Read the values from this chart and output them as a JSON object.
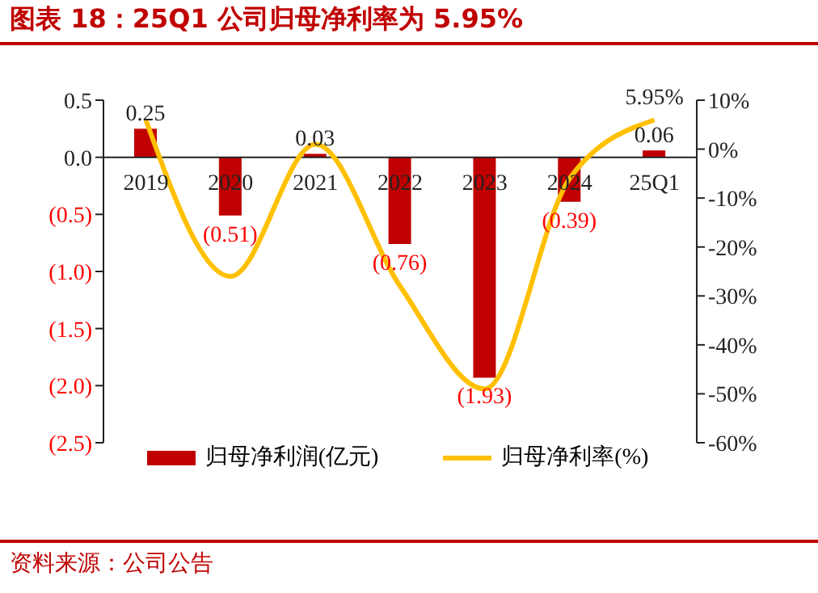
{
  "chart_data": {
    "type": "bar",
    "title": "图表 18：25Q1 公司归母净利率为 5.95%",
    "categories": [
      "2019",
      "2020",
      "2021",
      "2022",
      "2023",
      "2024",
      "25Q1"
    ],
    "series": [
      {
        "name": "归母净利润(亿元)",
        "color": "#c00000",
        "values": [
          0.25,
          -0.51,
          0.03,
          -0.76,
          -1.93,
          -0.39,
          0.06
        ],
        "value_labels": [
          "0.25",
          "(0.51)",
          "0.03",
          "(0.76)",
          "(1.93)",
          "(0.39)",
          "0.06"
        ]
      },
      {
        "name": "归母净利率(%)",
        "type": "line",
        "axis": "y2",
        "color": "#ffc000",
        "values": [
          6,
          -26,
          1,
          -28,
          -49,
          -6,
          5.95
        ],
        "value_labels": [
          null,
          null,
          null,
          null,
          null,
          null,
          "5.95%"
        ]
      }
    ],
    "ylim": [
      -2.5,
      0.5
    ],
    "yticks": [
      {
        "value": -2.5,
        "label": "(2.5)"
      },
      {
        "value": -2,
        "label": "(2.0)"
      },
      {
        "value": -1.5,
        "label": "(1.5)"
      },
      {
        "value": -1,
        "label": "(1.0)"
      },
      {
        "value": -0.5,
        "label": "(0.5)"
      },
      {
        "value": 0,
        "label": "0.0"
      },
      {
        "value": 0.5,
        "label": "0.5"
      }
    ],
    "y2lim": [
      -60,
      10
    ],
    "y2ticks": [
      {
        "value": -60,
        "label": "-60%"
      },
      {
        "value": -50,
        "label": "-50%"
      },
      {
        "value": -40,
        "label": "-40%"
      },
      {
        "value": -30,
        "label": "-30%"
      },
      {
        "value": -20,
        "label": "-20%"
      },
      {
        "value": -10,
        "label": "-10%"
      },
      {
        "value": 0,
        "label": "0%"
      },
      {
        "value": 10,
        "label": "10%"
      }
    ],
    "grid": false,
    "legend": "bottom",
    "marker": "none",
    "line_style": "solid",
    "annotations": [
      "资料来源：公司公告"
    ]
  }
}
